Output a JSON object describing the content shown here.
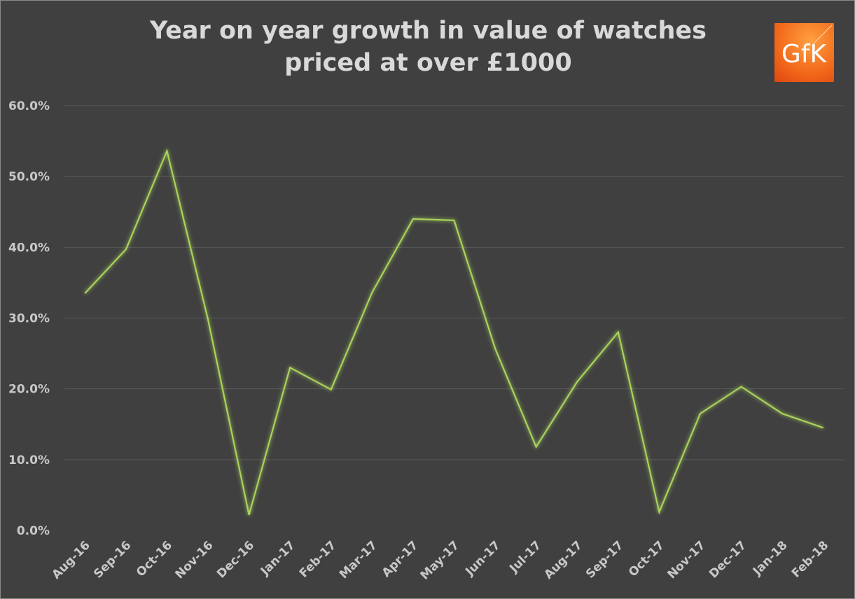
{
  "chart_data": {
    "type": "line",
    "title": "Year on year growth in value of watches priced at over £1000",
    "title_lines": [
      "Year on year growth in value of watches",
      "priced at over £1000"
    ],
    "categories": [
      "Aug-16",
      "Sep-16",
      "Oct-16",
      "Nov-16",
      "Dec-16",
      "Jan-17",
      "Feb-17",
      "Mar-17",
      "Apr-17",
      "May-17",
      "Jun-17",
      "Jul-17",
      "Aug-17",
      "Sep-17",
      "Oct-17",
      "Nov-17",
      "Dec-17",
      "Jan-18",
      "Feb-18"
    ],
    "series": [
      {
        "values": [
          33.5,
          39.7,
          53.6,
          29.8,
          2.2,
          23.0,
          19.9,
          33.6,
          44.0,
          43.8,
          25.7,
          11.8,
          21.0,
          28.0,
          2.6,
          16.5,
          20.3,
          16.5,
          14.5
        ]
      }
    ],
    "ylim": [
      0,
      60
    ],
    "yticks": [
      "0.0%",
      "10.0%",
      "20.0%",
      "30.0%",
      "40.0%",
      "50.0%",
      "60.0%"
    ],
    "grid": true,
    "legend": "none",
    "xlabel": "",
    "ylabel": "",
    "colors": {
      "background": "#404040",
      "line": "#a9d25c",
      "grid": "#5a5a5a",
      "text": "#d9d9d9"
    }
  },
  "logo": {
    "text": "GfK",
    "color": "#f26a1b"
  }
}
